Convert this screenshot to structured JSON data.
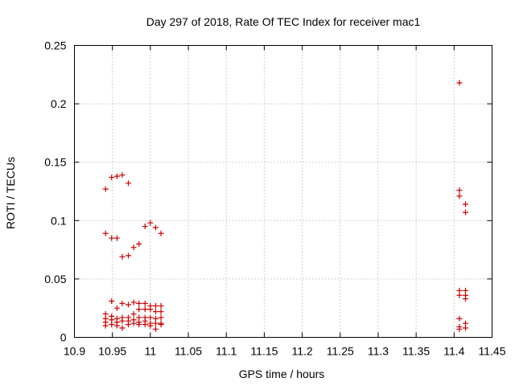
{
  "chart_data": {
    "type": "scatter",
    "title": "Day 297 of 2018, Rate Of TEC Index for receiver mac1",
    "xlabel": "GPS time / hours",
    "ylabel": "ROTI / TECUs",
    "xlim": [
      10.9,
      11.45
    ],
    "ylim": [
      0,
      0.25
    ],
    "grid": true,
    "marker": "+",
    "color": "#cc0000",
    "xticks": [
      10.9,
      10.95,
      11.0,
      11.05,
      11.1,
      11.15,
      11.2,
      11.25,
      11.3,
      11.35,
      11.4,
      11.45
    ],
    "xtick_labels": [
      "10.9",
      "10.95",
      "11",
      "11.05",
      "11.1",
      "11.15",
      "11.2",
      "11.25",
      "11.3",
      "11.35",
      "11.4",
      "11.45"
    ],
    "yticks": [
      0,
      0.05,
      0.1,
      0.15,
      0.2,
      0.25
    ],
    "ytick_labels": [
      "0",
      "0.05",
      "0.1",
      "0.15",
      "0.2",
      "0.25"
    ],
    "series": [
      {
        "name": "ROTI",
        "points": [
          [
            10.941,
            0.127
          ],
          [
            10.941,
            0.089
          ],
          [
            10.941,
            0.02
          ],
          [
            10.941,
            0.016
          ],
          [
            10.941,
            0.013
          ],
          [
            10.941,
            0.01
          ],
          [
            10.949,
            0.137
          ],
          [
            10.949,
            0.085
          ],
          [
            10.949,
            0.031
          ],
          [
            10.949,
            0.018
          ],
          [
            10.949,
            0.015
          ],
          [
            10.949,
            0.011
          ],
          [
            10.956,
            0.138
          ],
          [
            10.956,
            0.085
          ],
          [
            10.956,
            0.025
          ],
          [
            10.956,
            0.016
          ],
          [
            10.956,
            0.013
          ],
          [
            10.956,
            0.01
          ],
          [
            10.963,
            0.139
          ],
          [
            10.963,
            0.069
          ],
          [
            10.963,
            0.029
          ],
          [
            10.963,
            0.017
          ],
          [
            10.963,
            0.014
          ],
          [
            10.963,
            0.008
          ],
          [
            10.971,
            0.132
          ],
          [
            10.971,
            0.07
          ],
          [
            10.971,
            0.028
          ],
          [
            10.971,
            0.017
          ],
          [
            10.971,
            0.014
          ],
          [
            10.971,
            0.011
          ],
          [
            10.978,
            0.077
          ],
          [
            10.978,
            0.03
          ],
          [
            10.978,
            0.02
          ],
          [
            10.978,
            0.015
          ],
          [
            10.978,
            0.012
          ],
          [
            10.985,
            0.08
          ],
          [
            10.985,
            0.029
          ],
          [
            10.985,
            0.024
          ],
          [
            10.985,
            0.017
          ],
          [
            10.985,
            0.013
          ],
          [
            10.985,
            0.011
          ],
          [
            10.993,
            0.095
          ],
          [
            10.993,
            0.029
          ],
          [
            10.993,
            0.024
          ],
          [
            10.993,
            0.017
          ],
          [
            10.993,
            0.014
          ],
          [
            10.993,
            0.011
          ],
          [
            11.0,
            0.098
          ],
          [
            11.0,
            0.027
          ],
          [
            11.0,
            0.024
          ],
          [
            11.0,
            0.017
          ],
          [
            11.0,
            0.012
          ],
          [
            11.0,
            0.01
          ],
          [
            11.007,
            0.094
          ],
          [
            11.007,
            0.027
          ],
          [
            11.007,
            0.022
          ],
          [
            11.007,
            0.016
          ],
          [
            11.007,
            0.012
          ],
          [
            11.007,
            0.007
          ],
          [
            11.014,
            0.089
          ],
          [
            11.014,
            0.027
          ],
          [
            11.014,
            0.022
          ],
          [
            11.014,
            0.017
          ],
          [
            11.014,
            0.012
          ],
          [
            11.014,
            0.011
          ],
          [
            11.407,
            0.218
          ],
          [
            11.407,
            0.126
          ],
          [
            11.407,
            0.121
          ],
          [
            11.407,
            0.04
          ],
          [
            11.407,
            0.036
          ],
          [
            11.407,
            0.016
          ],
          [
            11.407,
            0.009
          ],
          [
            11.407,
            0.007
          ],
          [
            11.415,
            0.114
          ],
          [
            11.415,
            0.107
          ],
          [
            11.415,
            0.04
          ],
          [
            11.415,
            0.036
          ],
          [
            11.415,
            0.033
          ],
          [
            11.415,
            0.012
          ],
          [
            11.415,
            0.008
          ]
        ]
      }
    ]
  }
}
